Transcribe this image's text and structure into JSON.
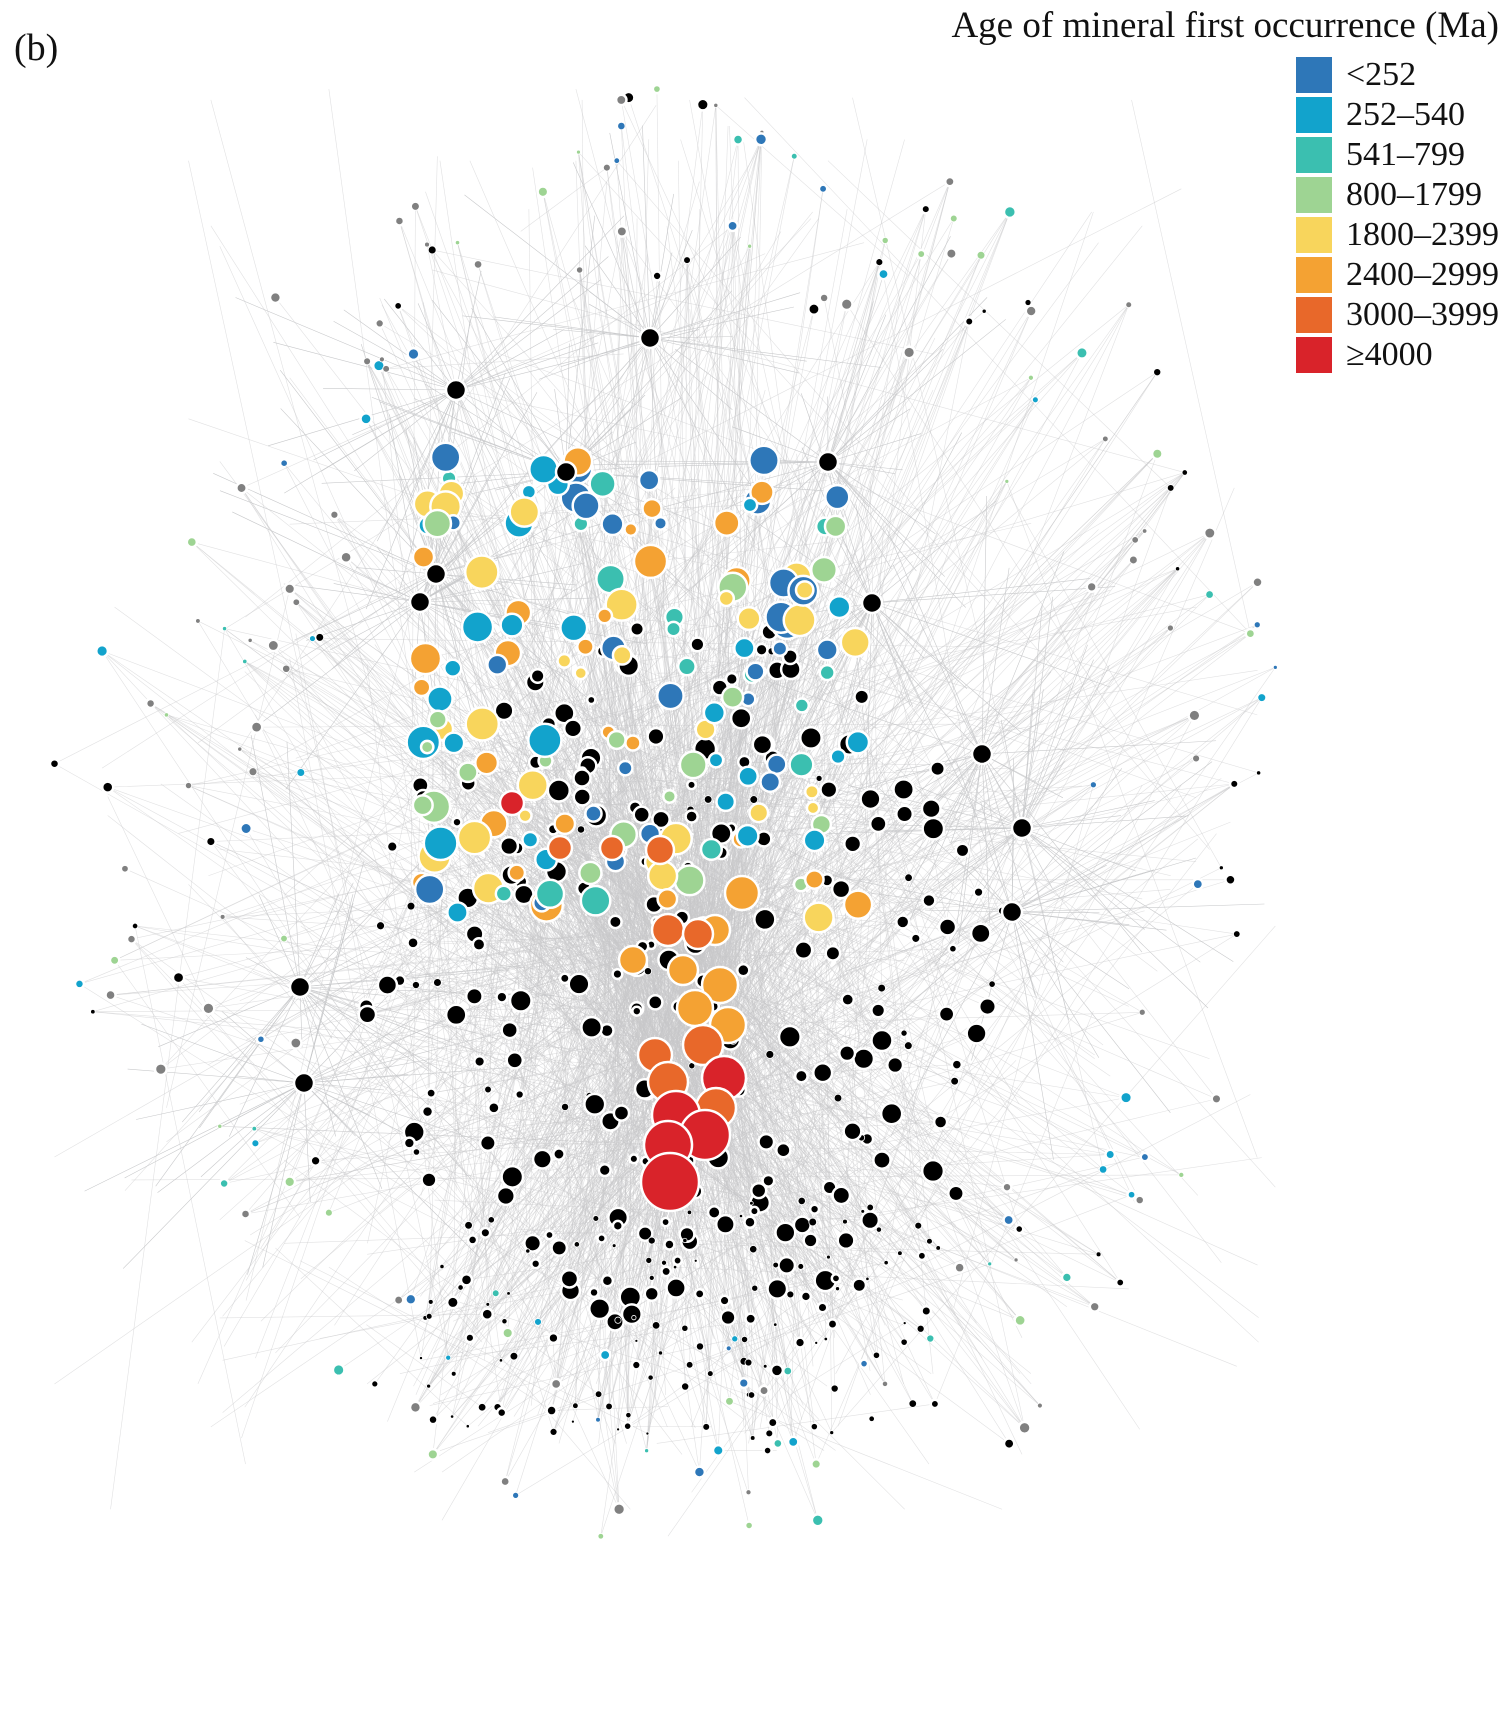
{
  "panel_label": "(b)",
  "legend": {
    "title": "Age of mineral first occurrence (Ma)",
    "items": [
      {
        "label": "<252",
        "color": "#2e77b8"
      },
      {
        "label": "252–540",
        "color": "#12a3cc"
      },
      {
        "label": "541–799",
        "color": "#3bbfb0"
      },
      {
        "label": "800–1799",
        "color": "#9ed493"
      },
      {
        "label": "1800–2399",
        "color": "#f8d55c"
      },
      {
        "label": "2400–2999",
        "color": "#f4a233"
      },
      {
        "label": "3000–3999",
        "color": "#e8682a"
      },
      {
        "label": "≥4000",
        "color": "#d9232a"
      }
    ]
  },
  "node_colors": {
    "locality": "#000000",
    "other": "#808080",
    "edge": "#c8c9cb"
  }
}
